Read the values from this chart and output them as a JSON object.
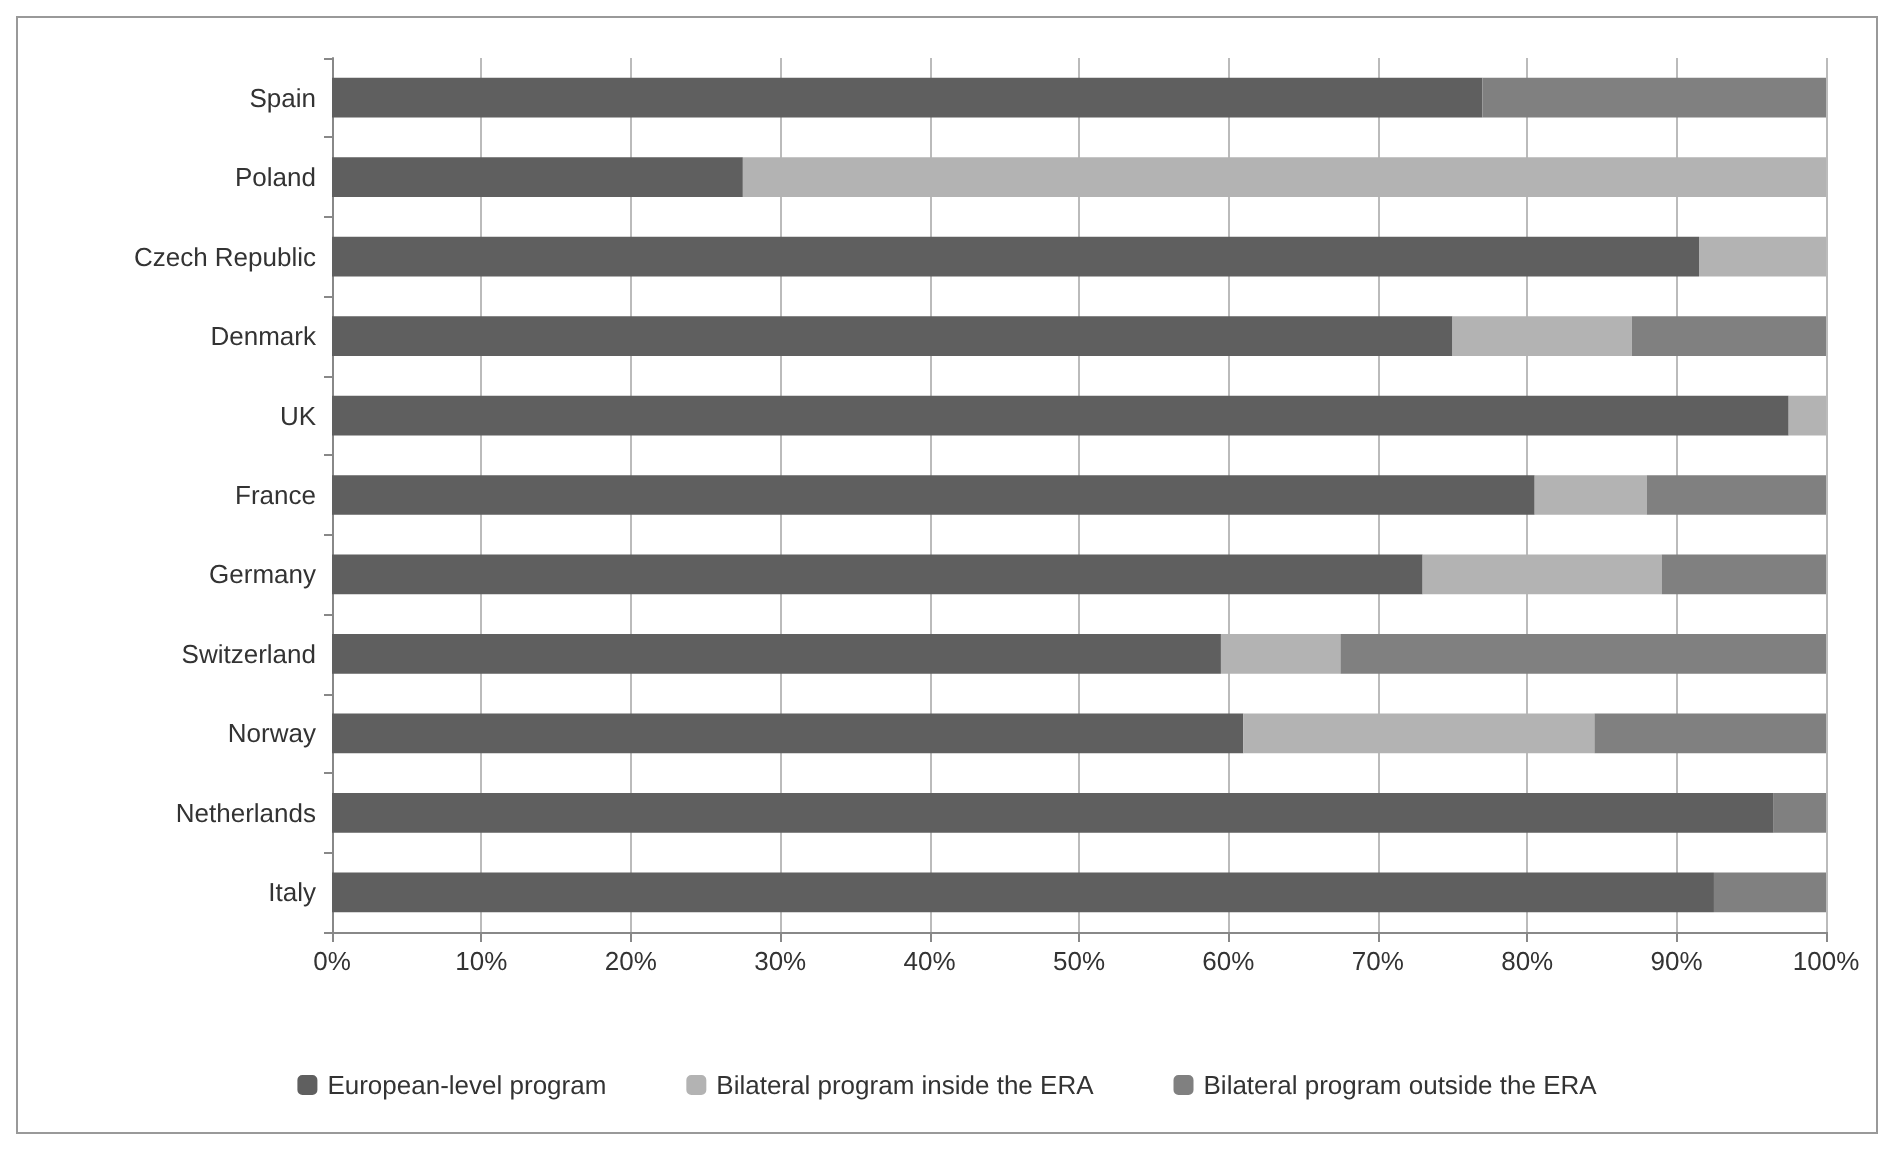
{
  "chart_data": {
    "type": "bar",
    "orientation": "horizontal",
    "stacked": true,
    "categories": [
      "Spain",
      "Poland",
      "Czech Republic",
      "Denmark",
      "UK",
      "France",
      "Germany",
      "Switzerland",
      "Norway",
      "Netherlands",
      "Italy"
    ],
    "series": [
      {
        "name": "European-level program",
        "color": "#5f5f5f",
        "values": [
          77,
          27.5,
          91.5,
          75,
          97.5,
          80.5,
          73,
          59.5,
          61,
          96.5,
          92.5
        ]
      },
      {
        "name": "Bilateral program inside the ERA",
        "color": "#b3b3b3",
        "values": [
          0,
          72.5,
          8.5,
          12,
          2.5,
          7.5,
          16,
          8,
          23.5,
          0,
          0
        ]
      },
      {
        "name": "Bilateral program outside the ERA",
        "color": "#808080",
        "values": [
          23,
          0,
          0,
          13,
          0,
          12,
          11,
          32.5,
          15.5,
          3.5,
          7.5
        ]
      }
    ],
    "xlim": [
      0,
      100
    ],
    "xticks": [
      {
        "value": 0,
        "label": "0%"
      },
      {
        "value": 10,
        "label": "10%"
      },
      {
        "value": 20,
        "label": "20%"
      },
      {
        "value": 30,
        "label": "30%"
      },
      {
        "value": 40,
        "label": "40%"
      },
      {
        "value": 50,
        "label": "50%"
      },
      {
        "value": 60,
        "label": "60%"
      },
      {
        "value": 70,
        "label": "70%"
      },
      {
        "value": 80,
        "label": "80%"
      },
      {
        "value": 90,
        "label": "90%"
      },
      {
        "value": 100,
        "label": "100%"
      }
    ],
    "grid": "x",
    "legend": "bottom"
  }
}
